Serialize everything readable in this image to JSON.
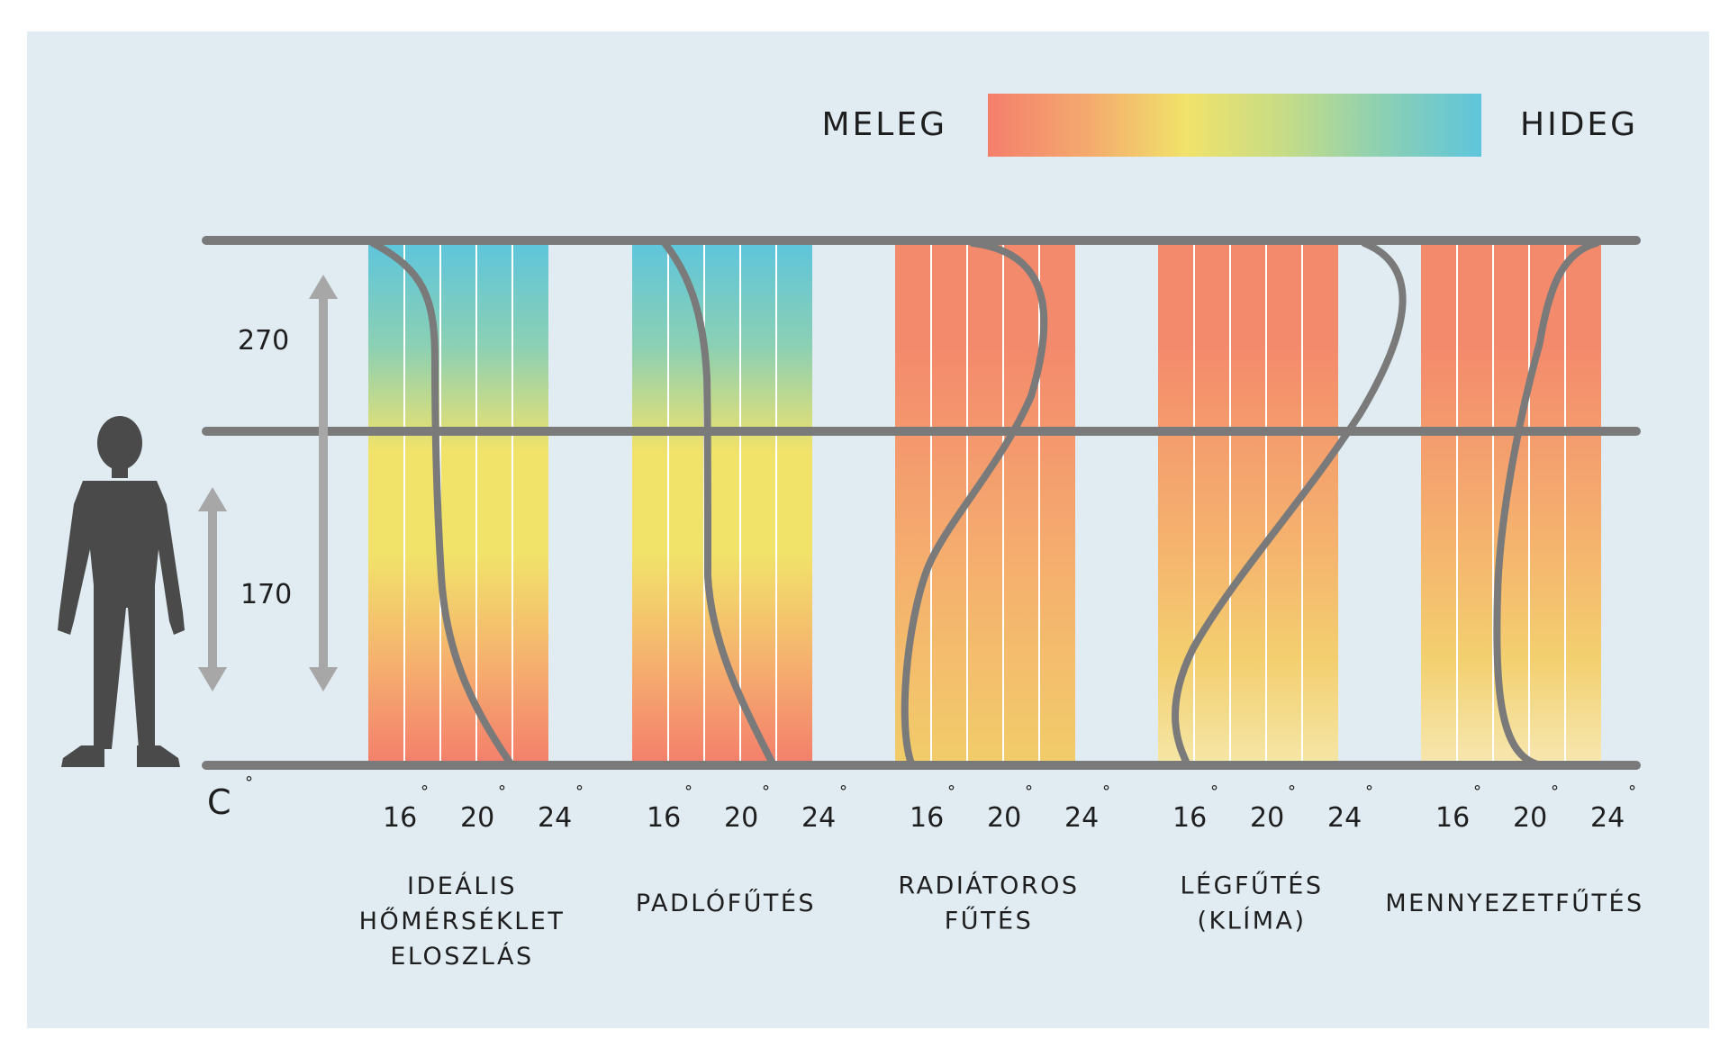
{
  "legend": {
    "warm_label": "MELEG",
    "cold_label": "HIDEG",
    "gradient_colors": [
      "#f47f6c",
      "#f4a96e",
      "#f1e26a",
      "#c6dc86",
      "#8cd0b3",
      "#5ec5dc"
    ]
  },
  "heights": {
    "upper": "270",
    "lower": "170"
  },
  "axis_unit": {
    "letter": "C",
    "degree": "°"
  },
  "ticks": [
    "16",
    "20",
    "24"
  ],
  "tick_degree": "°",
  "colors": {
    "background": "#e0ecf1",
    "line": "#7a7a7a",
    "arrow": "#a7a7a7",
    "figure": "#4a4a4a"
  },
  "panels": [
    {
      "id": "idealis",
      "caption": [
        "IDEÁLIS",
        "HŐMÉRSÉKLET",
        "ELOSZLÁS"
      ],
      "gradient": [
        "#5ec5dc",
        "#8cd0b3",
        "#f1e26a",
        "#f1e26a",
        "#f5b26e",
        "#f47f6c"
      ]
    },
    {
      "id": "padlo",
      "caption": [
        "PADLÓFŰTÉS"
      ],
      "gradient": [
        "#5ec5dc",
        "#8cd0b3",
        "#f1e26a",
        "#f1e26a",
        "#f5b26e",
        "#f47f6c"
      ]
    },
    {
      "id": "radiator",
      "caption": [
        "RADIÁTOROS",
        "FŰTÉS"
      ],
      "gradient": [
        "#f48a6c",
        "#f48a6c",
        "#f49a6e",
        "#f5ad6e",
        "#f4bd6c",
        "#f1cc6a"
      ]
    },
    {
      "id": "legfutes",
      "caption": [
        "LÉGFŰTÉS",
        "(KLÍMA)"
      ],
      "gradient": [
        "#f48a6c",
        "#f48a6c",
        "#f4a06d",
        "#f5b56e",
        "#f3cf6f",
        "#f5e6a6"
      ]
    },
    {
      "id": "mennyezet",
      "caption": [
        "MENNYEZETFŰTÉS"
      ],
      "gradient": [
        "#f48a6c",
        "#f48a6c",
        "#f49f6e",
        "#f5b66e",
        "#f3d06f",
        "#f6e7b0"
      ]
    }
  ]
}
